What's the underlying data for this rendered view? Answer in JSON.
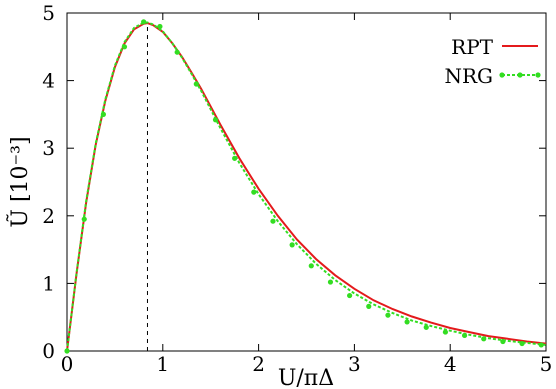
{
  "chart_data": {
    "type": "line",
    "title": "",
    "xlabel": "U/πΔ",
    "ylabel": "Ũ [10⁻³]",
    "xlim": [
      0,
      5
    ],
    "ylim": [
      0,
      5
    ],
    "xticks": [
      "0",
      "1",
      "2",
      "3",
      "4",
      "5"
    ],
    "yticks": [
      "0",
      "1",
      "2",
      "3",
      "4",
      "5"
    ],
    "grid": false,
    "legend_position": "top-right",
    "peak_marker_x": 0.84,
    "series": [
      {
        "name": "RPT",
        "color": "#e41a1c",
        "style": "solid",
        "x": [
          0,
          0.1,
          0.2,
          0.3,
          0.4,
          0.5,
          0.6,
          0.7,
          0.8,
          0.84,
          0.9,
          1.0,
          1.1,
          1.2,
          1.3,
          1.4,
          1.6,
          1.8,
          2.0,
          2.2,
          2.4,
          2.6,
          2.8,
          3.0,
          3.2,
          3.4,
          3.6,
          3.8,
          4.0,
          4.2,
          4.4,
          4.6,
          4.8,
          5.0
        ],
        "values": [
          0,
          1.15,
          2.2,
          3.05,
          3.7,
          4.2,
          4.55,
          4.76,
          4.84,
          4.85,
          4.82,
          4.72,
          4.55,
          4.35,
          4.12,
          3.88,
          3.35,
          2.85,
          2.4,
          2.0,
          1.65,
          1.36,
          1.12,
          0.92,
          0.75,
          0.62,
          0.51,
          0.42,
          0.34,
          0.28,
          0.22,
          0.18,
          0.14,
          0.11
        ]
      },
      {
        "name": "NRG",
        "color": "#33dd22",
        "style": "dotted",
        "x": [
          0,
          0.1,
          0.2,
          0.3,
          0.4,
          0.5,
          0.6,
          0.7,
          0.8,
          0.84,
          0.9,
          1.0,
          1.1,
          1.2,
          1.3,
          1.4,
          1.6,
          1.8,
          2.0,
          2.2,
          2.4,
          2.6,
          2.8,
          3.0,
          3.2,
          3.4,
          3.6,
          3.8,
          4.0,
          4.2,
          4.4,
          4.6,
          4.8,
          5.0
        ],
        "values": [
          0,
          1.16,
          2.22,
          3.07,
          3.72,
          4.22,
          4.57,
          4.78,
          4.86,
          4.86,
          4.83,
          4.73,
          4.55,
          4.34,
          4.1,
          3.85,
          3.3,
          2.78,
          2.32,
          1.92,
          1.58,
          1.29,
          1.05,
          0.85,
          0.69,
          0.56,
          0.45,
          0.37,
          0.3,
          0.24,
          0.19,
          0.15,
          0.12,
          0.09
        ]
      }
    ],
    "markers": {
      "series": "NRG",
      "x": [
        0,
        0.18,
        0.38,
        0.6,
        0.8,
        0.97,
        1.15,
        1.35,
        1.55,
        1.75,
        1.95,
        2.15,
        2.35,
        2.55,
        2.75,
        2.95,
        3.15,
        3.35,
        3.55,
        3.75,
        3.95,
        4.15,
        4.35,
        4.55,
        4.75,
        4.95
      ],
      "values": [
        0,
        1.95,
        3.5,
        4.5,
        4.87,
        4.8,
        4.42,
        3.95,
        3.42,
        2.85,
        2.35,
        1.92,
        1.57,
        1.26,
        1.02,
        0.82,
        0.66,
        0.53,
        0.43,
        0.35,
        0.28,
        0.23,
        0.18,
        0.14,
        0.11,
        0.09
      ]
    }
  }
}
